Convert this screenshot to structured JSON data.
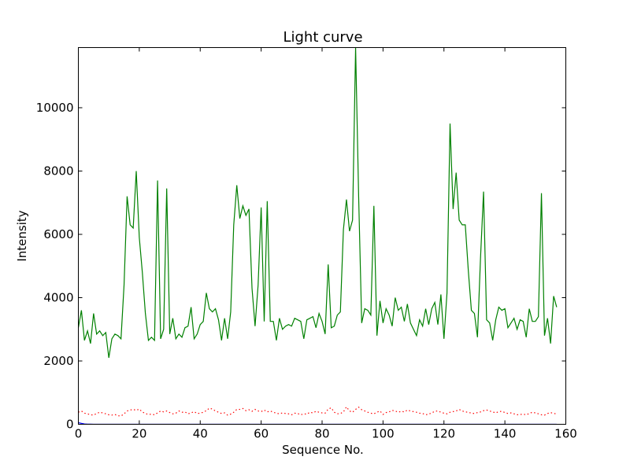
{
  "chart_data": {
    "type": "line",
    "title": "Light curve",
    "xlabel": "Sequence No.",
    "ylabel": "Intensity",
    "xlim": [
      0,
      160
    ],
    "ylim": [
      0,
      11900
    ],
    "xticks": [
      0,
      20,
      40,
      60,
      80,
      100,
      120,
      140,
      160
    ],
    "yticks": [
      0,
      2000,
      4000,
      6000,
      8000,
      10000
    ],
    "grid": false,
    "legend": "none",
    "series": [
      {
        "color": "#008000",
        "style": "solid",
        "y": [
          3050,
          3600,
          2650,
          2950,
          2550,
          3500,
          2850,
          2950,
          2800,
          2900,
          2100,
          2700,
          2850,
          2800,
          2700,
          4400,
          7200,
          6300,
          6200,
          8000,
          5900,
          4800,
          3500,
          2650,
          2750,
          2650,
          7700,
          2700,
          3000,
          7450,
          2850,
          3350,
          2700,
          2850,
          2750,
          3050,
          3100,
          3700,
          2700,
          2850,
          3150,
          3250,
          4150,
          3650,
          3550,
          3650,
          3300,
          2650,
          3350,
          2700,
          3550,
          6300,
          7550,
          6500,
          6900,
          6600,
          6800,
          4300,
          3100,
          4400,
          6850,
          3250,
          7050,
          3250,
          3250,
          2650,
          3350,
          3000,
          3100,
          3150,
          3100,
          3350,
          3300,
          3250,
          2700,
          3300,
          3350,
          3400,
          3050,
          3500,
          3250,
          2850,
          5050,
          3050,
          3100,
          3450,
          3550,
          6150,
          7100,
          6100,
          6450,
          11900,
          7200,
          3200,
          3650,
          3600,
          3450,
          6900,
          2800,
          3900,
          3200,
          3650,
          3450,
          3100,
          4000,
          3600,
          3700,
          3250,
          3800,
          3200,
          3000,
          2800,
          3300,
          3100,
          3650,
          3150,
          3650,
          3850,
          3150,
          4100,
          2700,
          4150,
          9500,
          6800,
          7950,
          6450,
          6300,
          6300,
          4850,
          3600,
          3500,
          2750,
          5250,
          7350,
          3300,
          3200,
          2650,
          3300,
          3700,
          3600,
          3650,
          3050,
          3200,
          3350,
          3000,
          3300,
          3250,
          2750,
          3650,
          3250,
          3250,
          3400,
          7300,
          2800,
          3350,
          2550,
          4050,
          3700
        ]
      },
      {
        "color": "#ff0000",
        "style": "dotted",
        "y": [
          380,
          420,
          350,
          330,
          300,
          290,
          340,
          380,
          360,
          330,
          300,
          290,
          310,
          270,
          260,
          330,
          420,
          450,
          470,
          440,
          480,
          390,
          340,
          310,
          320,
          300,
          360,
          420,
          390,
          420,
          370,
          330,
          350,
          420,
          380,
          390,
          330,
          360,
          400,
          340,
          350,
          380,
          430,
          510,
          480,
          420,
          380,
          340,
          360,
          290,
          320,
          380,
          470,
          470,
          500,
          430,
          460,
          410,
          470,
          420,
          400,
          450,
          390,
          420,
          380,
          350,
          330,
          360,
          340,
          330,
          300,
          350,
          340,
          300,
          330,
          320,
          380,
          360,
          410,
          380,
          360,
          350,
          480,
          520,
          380,
          330,
          340,
          390,
          550,
          420,
          380,
          470,
          540,
          460,
          420,
          380,
          350,
          330,
          380,
          420,
          310,
          370,
          390,
          440,
          420,
          380,
          410,
          390,
          450,
          420,
          400,
          380,
          350,
          340,
          300,
          320,
          360,
          410,
          420,
          380,
          350,
          330,
          380,
          400,
          420,
          470,
          420,
          390,
          380,
          350,
          340,
          370,
          390,
          430,
          450,
          420,
          390,
          360,
          400,
          410,
          370,
          340,
          360,
          330,
          300,
          310,
          320,
          300,
          340,
          380,
          360,
          330,
          300,
          290,
          340,
          370,
          340,
          330
        ]
      },
      {
        "color": "#0000ff",
        "style": "solid",
        "y": [
          50,
          30,
          10,
          5,
          3,
          2,
          1,
          1,
          1,
          1,
          1,
          1,
          1,
          1,
          1,
          1,
          1,
          1,
          1,
          1,
          1,
          1,
          1,
          1,
          1,
          1,
          1,
          1,
          1,
          1,
          1,
          1,
          1,
          1,
          1,
          1,
          1,
          1,
          1,
          1,
          1,
          1,
          1,
          1,
          1,
          1,
          1,
          1,
          1,
          1,
          1,
          1,
          1,
          1,
          1,
          1,
          1,
          1,
          1,
          1,
          1,
          1,
          1,
          1,
          1,
          1,
          1,
          1,
          1,
          1,
          1,
          1,
          1,
          1,
          1,
          1,
          1,
          1,
          1,
          1,
          1,
          1,
          1,
          1,
          1,
          1,
          1,
          1,
          1,
          1,
          1,
          1,
          1,
          1,
          1,
          1,
          1,
          1,
          1,
          1,
          1,
          1,
          1,
          1,
          1,
          1,
          1,
          1,
          1,
          1,
          1,
          1,
          1,
          1,
          1,
          1,
          1,
          1,
          1,
          1,
          1,
          1,
          1,
          1,
          1,
          1,
          1,
          1,
          1,
          1,
          1,
          1,
          1,
          1,
          1,
          1,
          1,
          1,
          1,
          1,
          1,
          1,
          1,
          1,
          1,
          1,
          1,
          1,
          1,
          1,
          1,
          1,
          1,
          1,
          1,
          1,
          1,
          1
        ]
      }
    ]
  }
}
